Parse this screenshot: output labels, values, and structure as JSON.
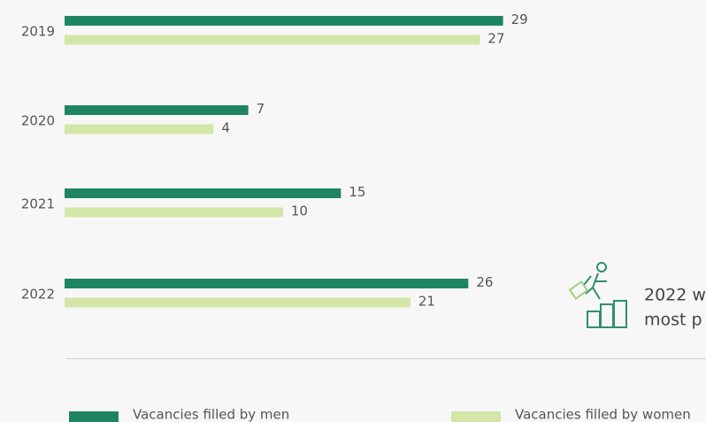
{
  "chart_data": {
    "type": "hbar",
    "categories": [
      "2019",
      "2020",
      "2021",
      "2022"
    ],
    "series": [
      {
        "name": "Vacancies filled by men",
        "color": "#1f8462",
        "values": [
          29,
          7,
          15,
          26
        ]
      },
      {
        "name": "Vacancies filled by women",
        "color": "#d3e6a7",
        "values": [
          27,
          4,
          10,
          21
        ]
      }
    ],
    "annotation": [
      "2022 w",
      "most p"
    ]
  }
}
